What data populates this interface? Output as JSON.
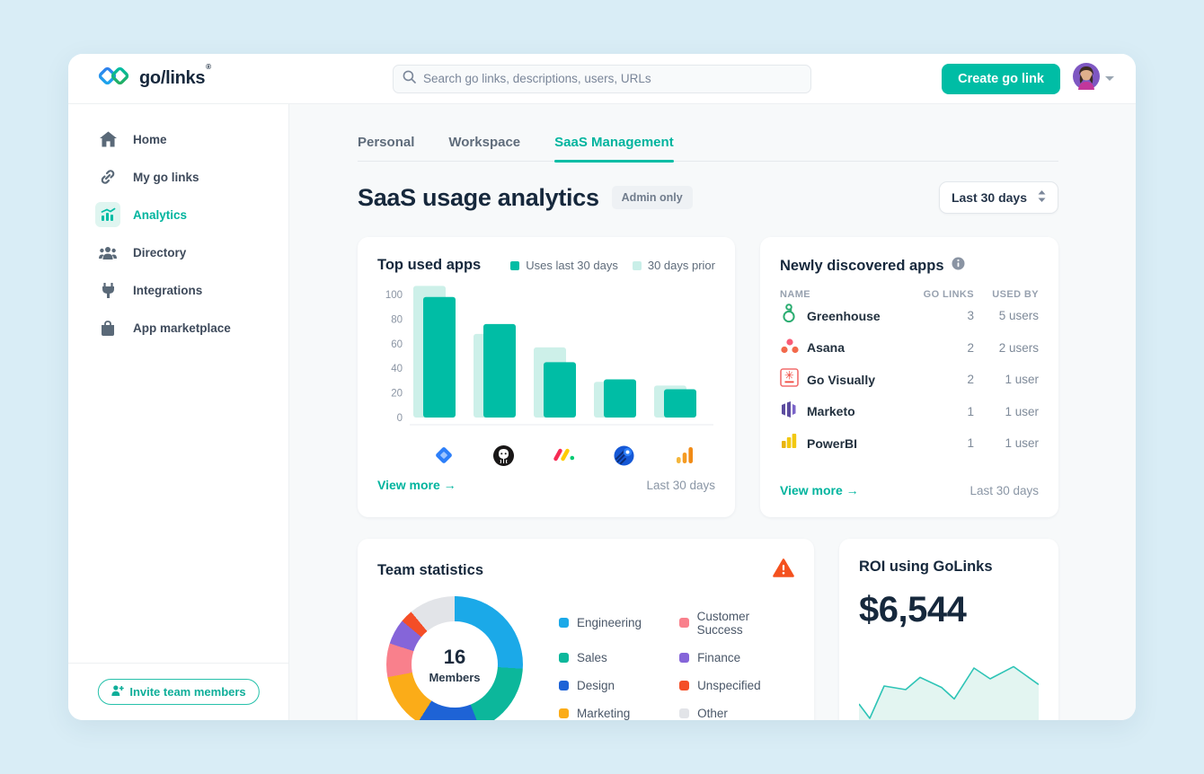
{
  "app": {
    "logo_text": "go/links",
    "logo_reg": "®"
  },
  "topbar": {
    "search_placeholder": "Search go links, descriptions, users, URLs",
    "create_button": "Create go link"
  },
  "sidebar": {
    "items": [
      {
        "label": "Home"
      },
      {
        "label": "My go links"
      },
      {
        "label": "Analytics",
        "active": true
      },
      {
        "label": "Directory"
      },
      {
        "label": "Integrations"
      },
      {
        "label": "App marketplace"
      }
    ],
    "invite_button": "Invite team members"
  },
  "tabs": [
    {
      "label": "Personal"
    },
    {
      "label": "Workspace"
    },
    {
      "label": "SaaS Management",
      "active": true
    }
  ],
  "page": {
    "title": "SaaS usage analytics",
    "badge": "Admin only",
    "range_select": "Last 30 days"
  },
  "cards": {
    "top_used_apps": {
      "title": "Top used apps",
      "legend": [
        {
          "label": "Uses last 30 days",
          "color": "#00bda5"
        },
        {
          "label": "30 days prior",
          "color": "#c9efe8"
        }
      ],
      "view_more": "View more →",
      "range": "Last 30 days"
    },
    "newly_discovered": {
      "title": "Newly discovered apps",
      "columns": [
        "NAME",
        "GO LINKS",
        "USED BY"
      ],
      "rows": [
        {
          "name": "Greenhouse",
          "go_links": "3",
          "used_by": "5 users"
        },
        {
          "name": "Asana",
          "go_links": "2",
          "used_by": "2 users"
        },
        {
          "name": "Go Visually",
          "go_links": "2",
          "used_by": "1 user"
        },
        {
          "name": "Marketo",
          "go_links": "1",
          "used_by": "1 user"
        },
        {
          "name": "PowerBI",
          "go_links": "1",
          "used_by": "1 user"
        }
      ],
      "view_more": "View more →",
      "range": "Last 30 days"
    },
    "team_stats": {
      "title": "Team statistics",
      "center_value": "16",
      "center_label": "Members"
    },
    "roi": {
      "title": "ROI using GoLinks",
      "value": "$6,544"
    }
  },
  "chart_data": [
    {
      "type": "bar",
      "title": "Top used apps",
      "categories": [
        "Jira",
        "GitHub",
        "Monday",
        "App",
        "Google Analytics"
      ],
      "series": [
        {
          "name": "30 days prior",
          "color": "#cdf0e9",
          "values": [
            107,
            68,
            57,
            29,
            26
          ]
        },
        {
          "name": "Uses last 30 days",
          "color": "#00bda5",
          "values": [
            98,
            76,
            45,
            31,
            23
          ]
        }
      ],
      "ylim": [
        0,
        110
      ],
      "yticks": [
        0,
        20,
        40,
        60,
        80,
        100
      ],
      "legend_position": "top-right",
      "grid": false
    },
    {
      "type": "pie",
      "title": "Team statistics",
      "center_text": "16 Members",
      "slices": [
        {
          "label": "Engineering",
          "value": 26,
          "color": "#1ba9e8"
        },
        {
          "label": "Sales",
          "value": 18,
          "color": "#0cb79b"
        },
        {
          "label": "Design",
          "value": 15,
          "color": "#1e63d6"
        },
        {
          "label": "Marketing",
          "value": 13,
          "color": "#fbac18"
        },
        {
          "label": "Customer Success",
          "value": 8,
          "color": "#f9808c"
        },
        {
          "label": "Finance",
          "value": 6,
          "color": "#8565d9"
        },
        {
          "label": "Unspecified",
          "value": 3,
          "color": "#f44e27"
        },
        {
          "label": "Other",
          "value": 11,
          "color": "#e2e4e8"
        }
      ]
    },
    {
      "type": "area",
      "title": "ROI using GoLinks",
      "x": [
        0,
        6,
        14,
        26,
        34,
        46,
        53,
        64,
        73,
        86,
        100
      ],
      "y": [
        35,
        15,
        60,
        55,
        72,
        58,
        42,
        85,
        70,
        87,
        62
      ],
      "color": "#2ec4b6",
      "fill": "#e3f5f1"
    }
  ]
}
